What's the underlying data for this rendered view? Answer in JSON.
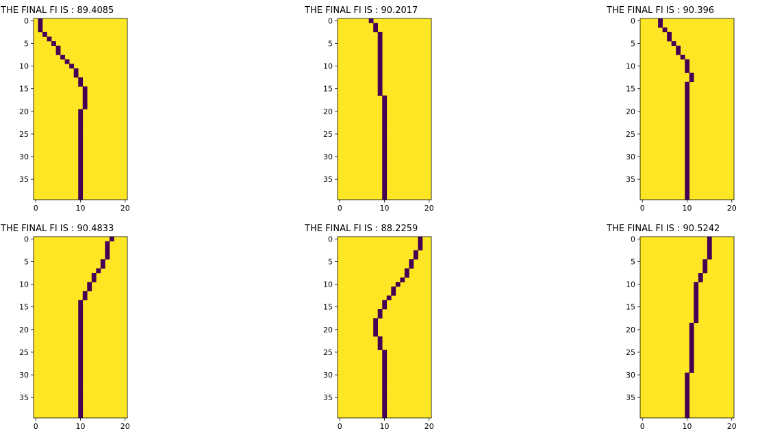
{
  "chart_data": [
    {
      "type": "heatmap",
      "title": "THE FINAL FI IS : 89.4085",
      "xticks": [
        0,
        10,
        20
      ],
      "yticks": [
        0,
        5,
        10,
        15,
        20,
        25,
        30,
        35
      ],
      "xlim": [
        -0.5,
        20.5
      ],
      "ylim": [
        39.5,
        -0.5
      ],
      "grid_shape": [
        40,
        21
      ],
      "colors": {
        "background": "#fde725",
        "path": "#440154"
      },
      "path_col_per_row": [
        1,
        1,
        1,
        2,
        3,
        4,
        5,
        5,
        6,
        7,
        8,
        9,
        9,
        10,
        10,
        11,
        11,
        11,
        11,
        11,
        10,
        10,
        10,
        10,
        10,
        10,
        10,
        10,
        10,
        10,
        10,
        10,
        10,
        10,
        10,
        10,
        10,
        10,
        10,
        10
      ]
    },
    {
      "type": "heatmap",
      "title": "THE FINAL FI IS : 90.2017",
      "xticks": [
        0,
        10,
        20
      ],
      "yticks": [
        0,
        5,
        10,
        15,
        20,
        25,
        30,
        35
      ],
      "xlim": [
        -0.5,
        20.5
      ],
      "ylim": [
        39.5,
        -0.5
      ],
      "grid_shape": [
        40,
        21
      ],
      "colors": {
        "background": "#fde725",
        "path": "#440154"
      },
      "path_col_per_row": [
        7,
        8,
        8,
        9,
        9,
        9,
        9,
        9,
        9,
        9,
        9,
        9,
        9,
        9,
        9,
        9,
        9,
        10,
        10,
        10,
        10,
        10,
        10,
        10,
        10,
        10,
        10,
        10,
        10,
        10,
        10,
        10,
        10,
        10,
        10,
        10,
        10,
        10,
        10,
        10
      ]
    },
    {
      "type": "heatmap",
      "title": "THE FINAL FI IS : 90.396",
      "xticks": [
        0,
        10,
        20
      ],
      "yticks": [
        0,
        5,
        10,
        15,
        20,
        25,
        30,
        35
      ],
      "xlim": [
        -0.5,
        20.5
      ],
      "ylim": [
        39.5,
        -0.5
      ],
      "grid_shape": [
        40,
        21
      ],
      "colors": {
        "background": "#fde725",
        "path": "#440154"
      },
      "path_col_per_row": [
        4,
        4,
        5,
        6,
        6,
        7,
        8,
        8,
        9,
        10,
        10,
        10,
        11,
        11,
        10,
        10,
        10,
        10,
        10,
        10,
        10,
        10,
        10,
        10,
        10,
        10,
        10,
        10,
        10,
        10,
        10,
        10,
        10,
        10,
        10,
        10,
        10,
        10,
        10,
        10
      ]
    },
    {
      "type": "heatmap",
      "title": "THE FINAL FI IS : 90.4833",
      "xticks": [
        0,
        10,
        20
      ],
      "yticks": [
        0,
        5,
        10,
        15,
        20,
        25,
        30,
        35
      ],
      "xlim": [
        -0.5,
        20.5
      ],
      "ylim": [
        39.5,
        -0.5
      ],
      "grid_shape": [
        40,
        21
      ],
      "colors": {
        "background": "#fde725",
        "path": "#440154"
      },
      "path_col_per_row": [
        17,
        16,
        16,
        16,
        16,
        15,
        15,
        14,
        13,
        13,
        12,
        12,
        11,
        11,
        10,
        10,
        10,
        10,
        10,
        10,
        10,
        10,
        10,
        10,
        10,
        10,
        10,
        10,
        10,
        10,
        10,
        10,
        10,
        10,
        10,
        10,
        10,
        10,
        10,
        10
      ]
    },
    {
      "type": "heatmap",
      "title": "THE FINAL FI IS : 88.2259",
      "xticks": [
        0,
        10,
        20
      ],
      "yticks": [
        0,
        5,
        10,
        15,
        20,
        25,
        30,
        35
      ],
      "xlim": [
        -0.5,
        20.5
      ],
      "ylim": [
        39.5,
        -0.5
      ],
      "grid_shape": [
        40,
        21
      ],
      "colors": {
        "background": "#fde725",
        "path": "#440154"
      },
      "path_col_per_row": [
        18,
        18,
        18,
        17,
        17,
        16,
        16,
        15,
        15,
        14,
        13,
        12,
        12,
        11,
        10,
        10,
        9,
        9,
        8,
        8,
        8,
        8,
        9,
        9,
        9,
        10,
        10,
        10,
        10,
        10,
        10,
        10,
        10,
        10,
        10,
        10,
        10,
        10,
        10,
        10
      ]
    },
    {
      "type": "heatmap",
      "title": "THE FINAL FI IS : 90.5242",
      "xticks": [
        0,
        10,
        20
      ],
      "yticks": [
        0,
        5,
        10,
        15,
        20,
        25,
        30,
        35
      ],
      "xlim": [
        -0.5,
        20.5
      ],
      "ylim": [
        39.5,
        -0.5
      ],
      "grid_shape": [
        40,
        21
      ],
      "colors": {
        "background": "#fde725",
        "path": "#440154"
      },
      "path_col_per_row": [
        15,
        15,
        15,
        15,
        15,
        14,
        14,
        14,
        13,
        13,
        12,
        12,
        12,
        12,
        12,
        12,
        12,
        12,
        12,
        11,
        11,
        11,
        11,
        11,
        11,
        11,
        11,
        11,
        11,
        11,
        10,
        10,
        10,
        10,
        10,
        10,
        10,
        10,
        10,
        10
      ]
    }
  ]
}
